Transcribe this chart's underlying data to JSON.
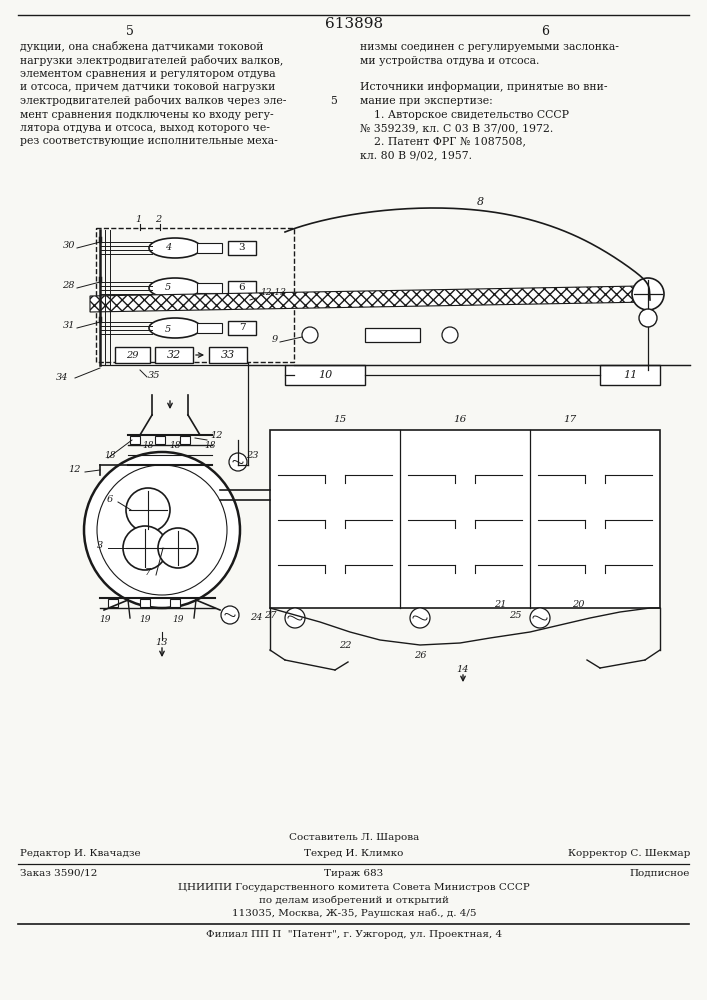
{
  "title_number": "613898",
  "page_left": "5",
  "page_right": "6",
  "text_left_lines": [
    "дукции, она снабжена датчиками токовой",
    "нагрузки электродвигателей рабочих валков,",
    "элементом сравнения и регулятором отдува",
    "и отсоса, причем датчики токовой нагрузки",
    "электродвигателей рабочих валков через эле-",
    "мент сравнения подключены ко входу регу-",
    "лятора отдува и отсоса, выход которого че-",
    "рез соответствующие исполнительные меха-"
  ],
  "text_right_lines": [
    "низмы соединен с регулируемыми заслонка-",
    "ми устройства отдува и отсоса.",
    "",
    "Источники информации, принятые во вни-",
    "мание при экспертизе:",
    "    1. Авторское свидетельство СССР",
    "№ 359239, кл. С 03 В 37/00, 1972.",
    "    2. Патент ФРГ № 1087508,",
    "кл. 80 В 9/02, 1957."
  ],
  "line_number_5_marker": "5",
  "footer_line1": "Составитель Л. Шарова",
  "footer_editor": "Редактор И. Квачадзе",
  "footer_tech": "Техред И. Климко",
  "footer_corrector": "Корректор С. Шекмар",
  "footer_order": "Заказ 3590/12",
  "footer_circ": "Тираж 683",
  "footer_sub": "Подписное",
  "footer_org": "ЦНИИПИ Государственного комитета Совета Министров СССР",
  "footer_org2": "по делам изобретений и открытий",
  "footer_addr": "113035, Москва, Ж-35, Раушская наб., д. 4/5",
  "footer_branch": "Филиал ПП П  \"Патент\", г. Ужгород, ул. Проектная, 4",
  "bg_color": "#f8f8f4",
  "line_color": "#1a1a1a",
  "text_color": "#1a1a1a"
}
